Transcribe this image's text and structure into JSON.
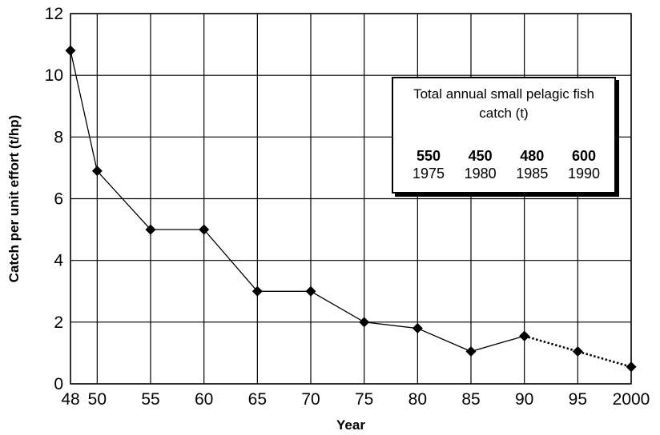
{
  "chart_data": {
    "type": "line",
    "xlabel": "Year",
    "ylabel": "Catch per unit effort (t/hp)",
    "ylim": [
      0,
      12
    ],
    "yticks": [
      0,
      2,
      4,
      6,
      8,
      10,
      12
    ],
    "xlim": [
      1948,
      2000
    ],
    "xticks": [
      1948,
      1950,
      1955,
      1960,
      1965,
      1970,
      1975,
      1980,
      1985,
      1990,
      1995,
      2000
    ],
    "xtick_labels": [
      "48",
      "50",
      "55",
      "60",
      "65",
      "70",
      "75",
      "80",
      "85",
      "90",
      "95",
      "2000"
    ],
    "grid": true,
    "series": [
      {
        "style": "solid",
        "marker": "diamond",
        "x": [
          1948,
          1950,
          1955,
          1960,
          1965,
          1970,
          1975,
          1980,
          1985,
          1990
        ],
        "y": [
          10.8,
          6.9,
          5.0,
          5.0,
          3.0,
          3.0,
          2.0,
          1.8,
          1.05,
          1.55
        ]
      },
      {
        "style": "dotted",
        "marker": "diamond",
        "x": [
          1990,
          1995,
          2000
        ],
        "y": [
          1.55,
          1.05,
          0.55
        ]
      }
    ],
    "inset_table": {
      "title": "Total annual small pelagic fish catch (t)",
      "columns": [
        {
          "value": "550",
          "year": "1975"
        },
        {
          "value": "450",
          "year": "1980"
        },
        {
          "value": "480",
          "year": "1985"
        },
        {
          "value": "600",
          "year": "1990"
        }
      ]
    }
  }
}
